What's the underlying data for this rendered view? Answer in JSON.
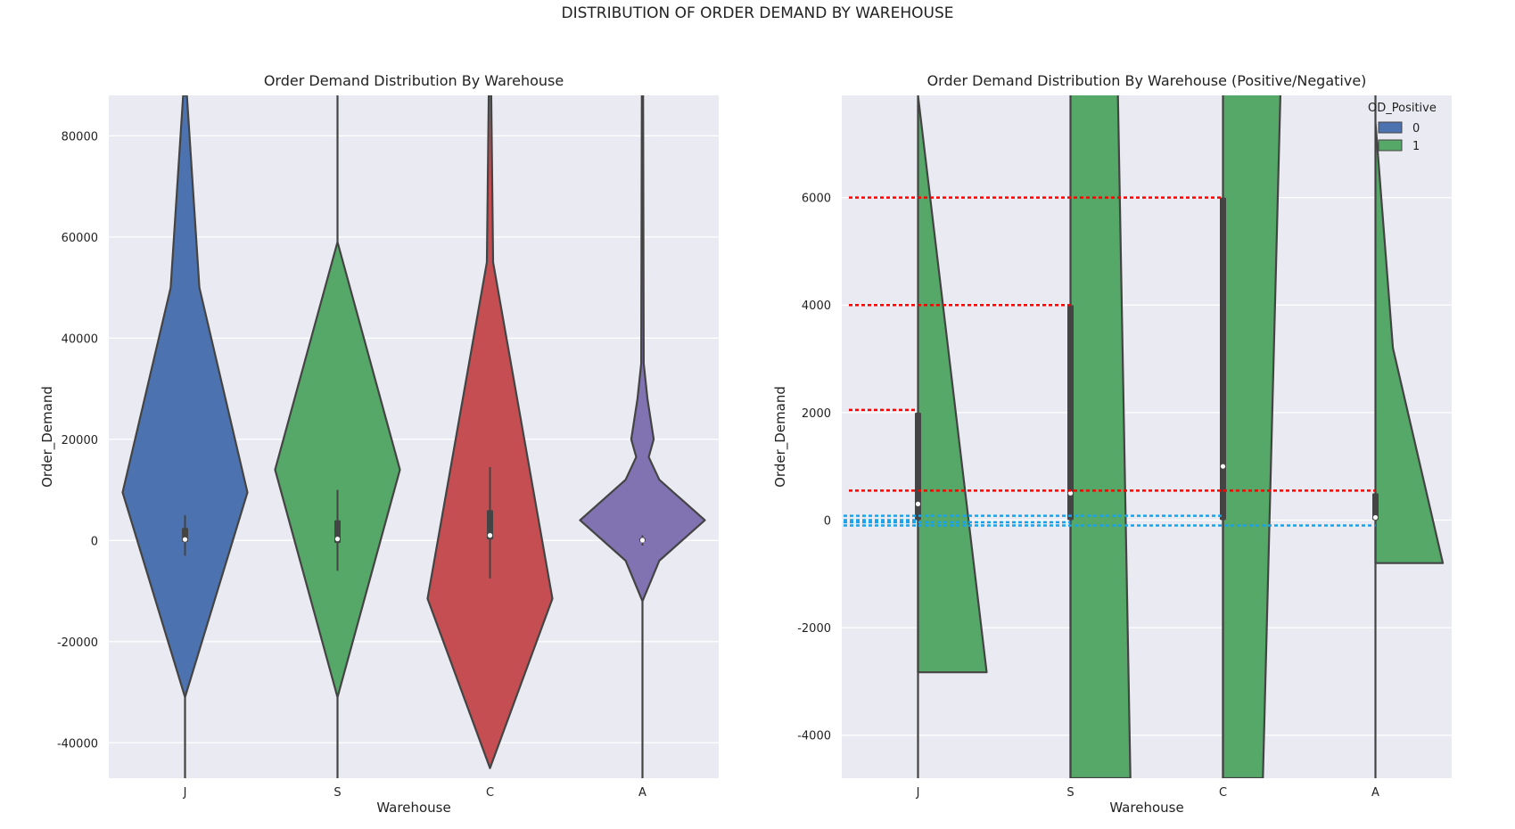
{
  "suptitle": "DISTRIBUTION OF ORDER DEMAND BY WAREHOUSE",
  "chart_data": [
    {
      "type": "violin",
      "title": "Order Demand Distribution By Warehouse",
      "xlabel": "Warehouse",
      "ylabel": "Order_Demand",
      "categories": [
        "J",
        "S",
        "C",
        "A"
      ],
      "ylim": [
        -47000,
        88000
      ],
      "yticks": [
        -40000,
        -20000,
        0,
        20000,
        40000,
        60000,
        80000
      ],
      "grid": true,
      "colors": [
        "#4c72b0",
        "#55a868",
        "#c44e52",
        "#8172b2"
      ],
      "violins": [
        {
          "category": "J",
          "outline": [
            [
              -47000,
              0
            ],
            [
              -31000,
              0
            ],
            [
              9500,
              1
            ],
            [
              50000,
              0.23
            ],
            [
              88000,
              0.03
            ]
          ],
          "box": {
            "q1": -300,
            "median": 200,
            "q3": 2500,
            "whisker_low": -3000,
            "whisker_high": 5000
          }
        },
        {
          "category": "S",
          "outline": [
            [
              -47000,
              0
            ],
            [
              -31000,
              0
            ],
            [
              14000,
              1
            ],
            [
              59000,
              0
            ],
            [
              88000,
              0
            ]
          ],
          "box": {
            "q1": -500,
            "median": 300,
            "q3": 4000,
            "whisker_low": -6000,
            "whisker_high": 10000
          }
        },
        {
          "category": "C",
          "outline": [
            [
              -45000,
              0
            ],
            [
              -11500,
              1
            ],
            [
              55000,
              0.05
            ],
            [
              88000,
              0.02
            ]
          ],
          "box": {
            "q1": 200,
            "median": 1000,
            "q3": 6000,
            "whisker_low": -7500,
            "whisker_high": 14500
          }
        },
        {
          "category": "A",
          "outline": [
            [
              -47000,
              0
            ],
            [
              -12000,
              0
            ],
            [
              -4000,
              0.27
            ],
            [
              4000,
              1
            ],
            [
              12000,
              0.27
            ],
            [
              16500,
              0.1
            ],
            [
              20000,
              0.18
            ],
            [
              28000,
              0.08
            ],
            [
              35000,
              0.02
            ],
            [
              88000,
              0.01
            ]
          ],
          "box": {
            "q1": -300,
            "median": 50,
            "q3": 500,
            "whisker_low": -1000,
            "whisker_high": 1000
          }
        }
      ]
    },
    {
      "type": "violin",
      "title": "Order Demand Distribution By Warehouse (Positive/Negative)",
      "xlabel": "Warehouse",
      "ylabel": "Order_Demand",
      "categories": [
        "J",
        "S",
        "C",
        "A"
      ],
      "ylim": [
        -4800,
        7900
      ],
      "yticks": [
        -4000,
        -2000,
        0,
        2000,
        4000,
        6000
      ],
      "grid": true,
      "legend": {
        "title": "OD_Positive",
        "placement": "top-right",
        "entries": [
          {
            "label": "0",
            "color": "#4c72b0"
          },
          {
            "label": "1",
            "color": "#55a868"
          }
        ]
      },
      "violins": [
        {
          "category": "J",
          "outline_positive": [
            [
              -2830,
              0
            ],
            [
              -2830,
              0.55
            ],
            [
              7900,
              0.0
            ]
          ],
          "box": {
            "q1": 0,
            "median": 300,
            "q3": 2000
          }
        },
        {
          "category": "S",
          "outline_positive": [
            [
              -4800,
              0.48
            ],
            [
              7900,
              0.38
            ]
          ],
          "box": {
            "q1": 0,
            "median": 500,
            "q3": 4000
          }
        },
        {
          "category": "C",
          "outline_positive": [
            [
              -4800,
              0.32
            ],
            [
              7900,
              0.46
            ]
          ],
          "box": {
            "q1": 0,
            "median": 1000,
            "q3": 6000
          }
        },
        {
          "category": "A",
          "outline_positive": [
            [
              -800,
              0
            ],
            [
              -800,
              0.54
            ],
            [
              3200,
              0.14
            ],
            [
              7400,
              0.0
            ]
          ],
          "box": {
            "q1": 0,
            "median": 50,
            "q3": 500
          }
        }
      ],
      "red_reference_lines": [
        {
          "y": 6000,
          "to": "C"
        },
        {
          "y": 4000,
          "to": "S"
        },
        {
          "y": 2050,
          "to": "J"
        },
        {
          "y": 550,
          "to": "A"
        }
      ],
      "blue_reference_lines": [
        {
          "y": 80,
          "to": "C"
        },
        {
          "y": -100,
          "to": "A"
        },
        {
          "y": 0,
          "to": "J"
        },
        {
          "y": -40,
          "to": "S"
        }
      ]
    }
  ]
}
